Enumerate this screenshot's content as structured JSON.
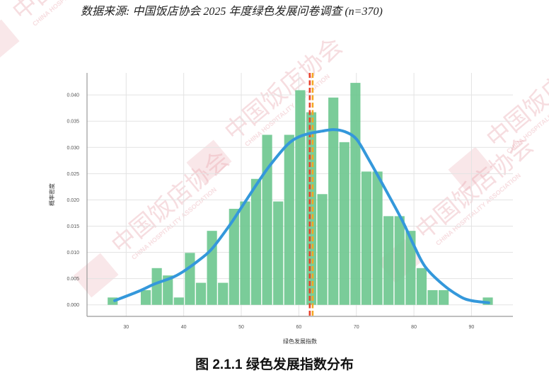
{
  "source_note": "数据来源: 中国饭店协会 2025 年度绿色发展问卷调查 (n=370)",
  "caption": "图 2.1.1   绿色发展指数分布",
  "watermark": {
    "cn": "中国饭店协会",
    "en": "CHINA HOSPITALITY ASSOCIATION",
    "logo": "CHA"
  },
  "chart_data": {
    "type": "histogram",
    "title": "",
    "xlabel": "绿色发展指数",
    "ylabel": "概率密度",
    "xlim": [
      23.2,
      97.2
    ],
    "ylim": [
      -0.0022,
      0.0442
    ],
    "xticks": [
      30,
      40,
      50,
      60,
      70,
      80,
      90
    ],
    "yticks": [
      "0.000",
      "0.005",
      "0.010",
      "0.015",
      "0.020",
      "0.025",
      "0.030",
      "0.035",
      "0.040"
    ],
    "grid": true,
    "bin_start": 26.7,
    "bin_width": 1.917,
    "density": [
      0.0014,
      0,
      0,
      0.0028,
      0.007,
      0.0056,
      0.0014,
      0.0099,
      0.0042,
      0.0141,
      0.0042,
      0.0183,
      0.0197,
      0.024,
      0.0324,
      0.0197,
      0.0324,
      0.0409,
      0.0367,
      0.0211,
      0.0395,
      0.031,
      0.0423,
      0.0254,
      0.0254,
      0.0169,
      0.0169,
      0.0141,
      0.007,
      0.0028,
      0.0028,
      0,
      0,
      0,
      0.0014
    ],
    "kde": {
      "x": [
        28,
        32,
        35,
        38,
        40,
        43,
        45,
        48,
        50,
        53,
        55,
        58,
        60,
        62,
        64,
        66,
        68,
        70,
        72,
        75,
        78,
        80,
        82,
        85,
        88,
        90,
        93
      ],
      "y": [
        0.0008,
        0.0025,
        0.004,
        0.0052,
        0.0064,
        0.0088,
        0.0108,
        0.0152,
        0.0185,
        0.0235,
        0.0266,
        0.0305,
        0.032,
        0.0327,
        0.0331,
        0.0334,
        0.033,
        0.0316,
        0.028,
        0.0221,
        0.016,
        0.0113,
        0.0072,
        0.0039,
        0.0016,
        0.0008,
        0.0004
      ]
    },
    "vlines": [
      {
        "x": 61.9,
        "color": "#e8412c"
      },
      {
        "x": 62.4,
        "color": "#f5a623"
      }
    ],
    "colors": {
      "bars": "#6cc68e",
      "kde": "#3498db",
      "grid": "#e3e3e3",
      "axis": "#999999"
    }
  }
}
